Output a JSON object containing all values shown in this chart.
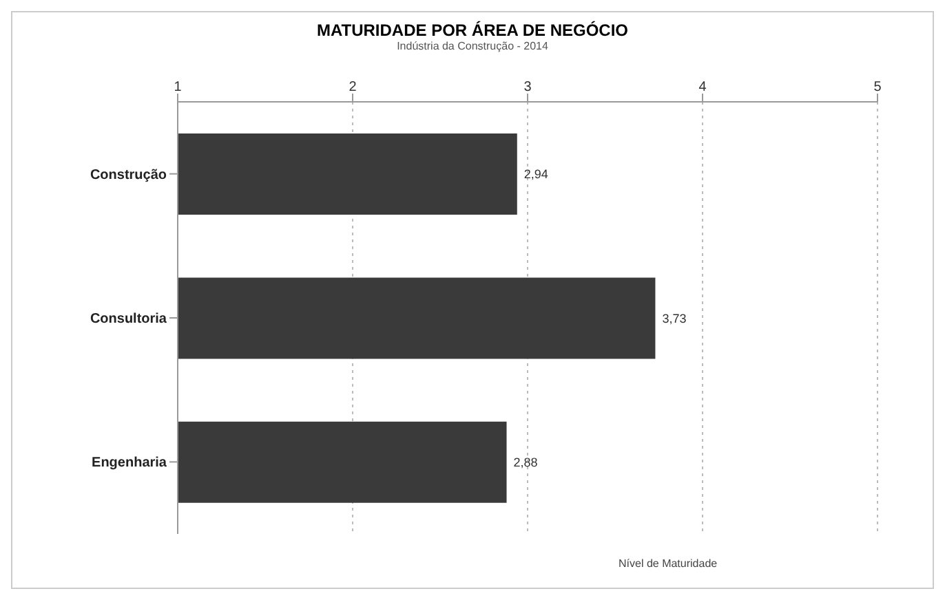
{
  "chart_data": {
    "type": "bar",
    "orientation": "horizontal",
    "title": "MATURIDADE POR ÁREA DE NEGÓCIO",
    "subtitle": "Indústria da Construção - 2014",
    "xlabel": "Nível de Maturidade",
    "categories": [
      "Construção",
      "Consultoria",
      "Engenharia"
    ],
    "values": [
      2.94,
      3.73,
      2.88
    ],
    "value_labels": [
      "2,94",
      "3,73",
      "2,88"
    ],
    "color": "#3a3a3a",
    "xlim": [
      1,
      5
    ],
    "xticks": [
      1,
      2,
      3,
      4,
      5
    ],
    "grid": "x"
  }
}
